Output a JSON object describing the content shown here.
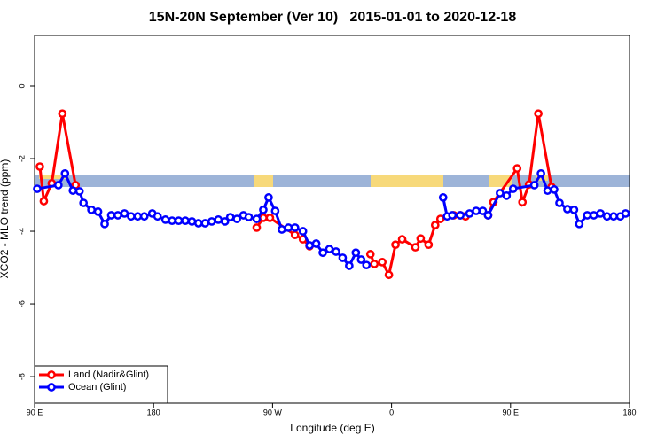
{
  "chart_data": {
    "type": "line",
    "title": "15N-20N September (Ver 10)   2015-01-01 to 2020-12-18",
    "x_label": "Longitude (deg E)",
    "y_label": "XCO2 - MLO trend (ppm)",
    "xlim": [
      90,
      540
    ],
    "ylim": [
      -8.73,
      1.39
    ],
    "xticks": [
      {
        "value": 90,
        "label": "90 E"
      },
      180,
      {
        "value": 270,
        "label": "90 W"
      },
      {
        "value": 360,
        "label": "0"
      },
      {
        "value": 450,
        "label": "90 E"
      },
      {
        "value": 540,
        "label": "180"
      }
    ],
    "yticks": [
      0,
      -2,
      -4,
      -6,
      -8
    ],
    "legend": "bottom-left",
    "series": [
      {
        "name": "Land (Nadir&Glint)",
        "color": "#ff0000",
        "x": [
          94,
          97,
          103,
          111,
          121,
          null,
          258,
          263,
          268,
          287,
          293,
          298,
          null,
          344,
          347,
          353,
          358,
          363,
          368,
          378,
          382,
          388,
          393,
          397,
          407,
          412,
          416,
          null,
          433,
          437,
          455,
          459,
          464,
          471,
          481
        ],
        "values": [
          -2.22,
          -3.17,
          -2.68,
          -0.76,
          -2.73,
          null,
          -3.9,
          -3.63,
          -3.63,
          -4.1,
          -4.22,
          -4.41,
          null,
          -4.63,
          -4.9,
          -4.85,
          -5.2,
          -4.37,
          -4.22,
          -4.44,
          -4.2,
          -4.37,
          -3.83,
          -3.66,
          -3.56,
          -3.56,
          -3.59,
          null,
          -3.56,
          -3.2,
          -2.27,
          -3.2,
          -2.71,
          -0.76,
          -2.78
        ]
      },
      {
        "name": "Ocean (Glint)",
        "color": "#0000ff",
        "x": [
          92,
          108,
          113,
          119,
          124,
          127,
          133,
          138,
          143,
          148,
          153,
          158,
          163,
          168,
          173,
          179,
          183,
          189,
          194,
          199,
          204,
          209,
          214,
          219,
          224,
          229,
          234,
          238,
          243,
          248,
          252,
          258,
          263,
          267,
          272,
          277,
          282,
          287,
          293,
          298,
          303,
          308,
          313,
          318,
          323,
          328,
          333,
          337,
          341,
          null,
          399,
          402,
          406,
          412,
          419,
          424,
          429,
          433,
          442,
          447,
          452,
          468,
          473,
          478,
          483,
          487,
          493,
          498,
          502,
          508,
          513,
          518,
          523,
          528,
          533,
          537
        ],
        "values": [
          -2.83,
          -2.73,
          -2.41,
          -2.88,
          -2.9,
          -3.22,
          -3.41,
          -3.46,
          -3.8,
          -3.56,
          -3.56,
          -3.51,
          -3.59,
          -3.59,
          -3.59,
          -3.51,
          -3.59,
          -3.68,
          -3.71,
          -3.71,
          -3.71,
          -3.73,
          -3.78,
          -3.78,
          -3.73,
          -3.68,
          -3.73,
          -3.61,
          -3.66,
          -3.56,
          -3.61,
          -3.66,
          -3.41,
          -3.07,
          -3.44,
          -3.95,
          -3.9,
          -3.9,
          -4.0,
          -4.39,
          -4.34,
          -4.59,
          -4.49,
          -4.56,
          -4.73,
          -4.95,
          -4.59,
          -4.78,
          -4.93,
          null,
          -3.07,
          -3.59,
          -3.56,
          -3.56,
          -3.51,
          -3.44,
          -3.44,
          -3.56,
          -2.95,
          -3.02,
          -2.83,
          -2.73,
          -2.41,
          -2.88,
          -2.85,
          -3.22,
          -3.39,
          -3.41,
          -3.8,
          -3.56,
          -3.56,
          -3.51,
          -3.59,
          -3.59,
          -3.59,
          -3.51
        ]
      }
    ]
  }
}
